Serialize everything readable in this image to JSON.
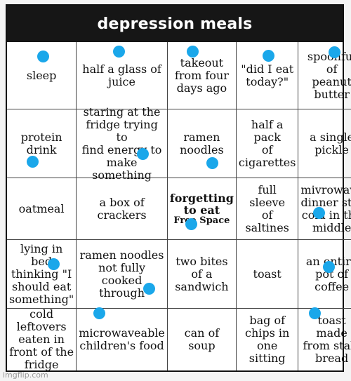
{
  "title": "depression meals",
  "watermark": "imgflip.com",
  "marker_color": "#1aa7ea",
  "cells": [
    {
      "text": "sleep"
    },
    {
      "text": "half a glass of juice"
    },
    {
      "text": "takeout\nfrom four\ndays ago"
    },
    {
      "text": "\"did I eat\ntoday?\""
    },
    {
      "text": "spoonful of\npeanut\nbutter"
    },
    {
      "text": "protein\ndrink"
    },
    {
      "text": "staring at the\nfridge trying to\nfind energy to\nmake\nsomething"
    },
    {
      "text": "ramen\nnoodles"
    },
    {
      "text": "half a pack\nof\ncigarettes"
    },
    {
      "text": "a single\npickle"
    },
    {
      "text": "oatmeal"
    },
    {
      "text": "a box of\ncrackers"
    },
    {
      "text": "forgetting\nto eat",
      "free_label": "Free Space"
    },
    {
      "text": "full sleeve\nof saltines"
    },
    {
      "text": "mivrowave\ndinner still\ncold in the\nmiddle"
    },
    {
      "text": "lying in\nbed\nthinking \"I\nshould eat\nsomething\""
    },
    {
      "text": "ramen noodles\nnot fully\ncooked\nthrough"
    },
    {
      "text": "two bites\nof a\nsandwich"
    },
    {
      "text": "toast"
    },
    {
      "text": "an entire\npot of\ncoffee"
    },
    {
      "text": "cold\nleftovers\neaten in\nfront of the\nfridge"
    },
    {
      "text": "microwaveable\nchildren's food"
    },
    {
      "text": "can of\nsoup"
    },
    {
      "text": "bag of\nchips in\none sitting"
    },
    {
      "text": "toast made\nfrom stale\nbread"
    }
  ]
}
